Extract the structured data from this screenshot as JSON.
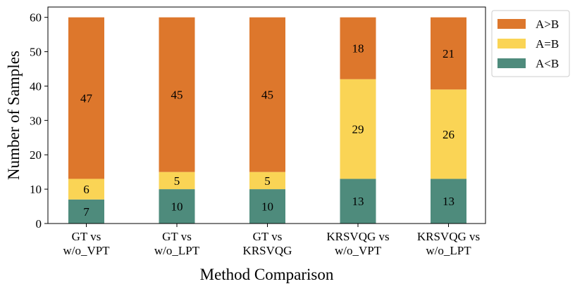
{
  "chart_data": {
    "type": "bar",
    "stacked": true,
    "title": "",
    "xlabel": "Method Comparison",
    "ylabel": "Number of Samples",
    "ylim": [
      0,
      63
    ],
    "yticks": [
      0,
      10,
      20,
      30,
      40,
      50,
      60
    ],
    "grid": false,
    "legend_position": "outside-top-right",
    "categories": [
      [
        "GT vs",
        "w/o_VPT"
      ],
      [
        "GT vs",
        "w/o_LPT"
      ],
      [
        "GT vs",
        "KRSVQG"
      ],
      [
        "KRSVQG vs",
        "w/o_VPT"
      ],
      [
        "KRSVQG vs",
        "w/o_LPT"
      ]
    ],
    "series": [
      {
        "name": "A<B",
        "color": "#4e8b7c",
        "values": [
          7,
          10,
          10,
          13,
          13
        ]
      },
      {
        "name": "A=B",
        "color": "#fad455",
        "values": [
          6,
          5,
          5,
          29,
          26
        ]
      },
      {
        "name": "A>B",
        "color": "#dd772c",
        "values": [
          47,
          45,
          45,
          18,
          21
        ]
      }
    ],
    "legend_order": [
      "A>B",
      "A=B",
      "A<B"
    ]
  }
}
